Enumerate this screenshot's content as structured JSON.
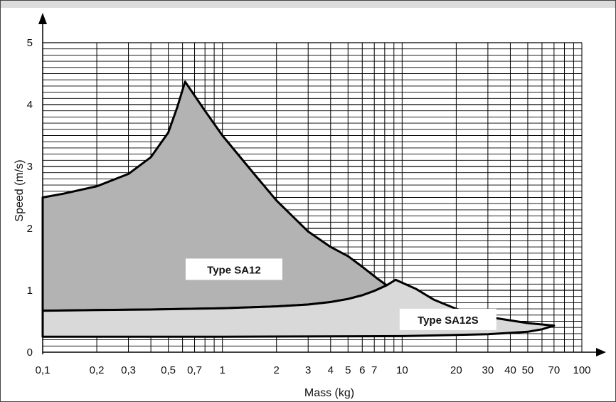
{
  "chart_data": {
    "type": "area",
    "title": "",
    "xlabel": "Mass (kg)",
    "ylabel": "Speed (m/s)",
    "xscale": "log",
    "xlim": [
      0.1,
      100
    ],
    "ylim": [
      0,
      5
    ],
    "grid": true,
    "x_tick_labels": [
      {
        "value": 0.1,
        "label": "0,1"
      },
      {
        "value": 0.2,
        "label": "0,2"
      },
      {
        "value": 0.3,
        "label": "0,3"
      },
      {
        "value": 0.5,
        "label": "0,5"
      },
      {
        "value": 0.7,
        "label": "0,7"
      },
      {
        "value": 1,
        "label": "1"
      },
      {
        "value": 2,
        "label": "2"
      },
      {
        "value": 3,
        "label": "3"
      },
      {
        "value": 4,
        "label": "4"
      },
      {
        "value": 5,
        "label": "5"
      },
      {
        "value": 6,
        "label": "6"
      },
      {
        "value": 7,
        "label": "7"
      },
      {
        "value": 10,
        "label": "10"
      },
      {
        "value": 20,
        "label": "20"
      },
      {
        "value": 30,
        "label": "30"
      },
      {
        "value": 40,
        "label": "40"
      },
      {
        "value": 50,
        "label": "50"
      },
      {
        "value": 70,
        "label": "70"
      },
      {
        "value": 100,
        "label": "100"
      }
    ],
    "y_tick_labels": [
      {
        "value": 0,
        "label": "0"
      },
      {
        "value": 1,
        "label": "1"
      },
      {
        "value": 2,
        "label": "2"
      },
      {
        "value": 3,
        "label": "3"
      },
      {
        "value": 4,
        "label": "4"
      },
      {
        "value": 5,
        "label": "5"
      }
    ],
    "series": [
      {
        "name": "Type SA12",
        "fill": "#b3b3b3",
        "boundary": [
          [
            0.1,
            0.67
          ],
          [
            0.2,
            0.68
          ],
          [
            0.4,
            0.69
          ],
          [
            1,
            0.71
          ],
          [
            2,
            0.74
          ],
          [
            3,
            0.77
          ],
          [
            4,
            0.81
          ],
          [
            5,
            0.86
          ],
          [
            6,
            0.92
          ],
          [
            7,
            0.99
          ],
          [
            8.2,
            1.08
          ],
          [
            7.2,
            1.2
          ],
          [
            6,
            1.38
          ],
          [
            5,
            1.55
          ],
          [
            4,
            1.7
          ],
          [
            3,
            1.95
          ],
          [
            2,
            2.45
          ],
          [
            1.5,
            2.88
          ],
          [
            1,
            3.5
          ],
          [
            0.8,
            3.9
          ],
          [
            0.62,
            4.37
          ],
          [
            0.56,
            3.95
          ],
          [
            0.5,
            3.55
          ],
          [
            0.4,
            3.15
          ],
          [
            0.3,
            2.88
          ],
          [
            0.2,
            2.68
          ],
          [
            0.13,
            2.56
          ],
          [
            0.1,
            2.5
          ]
        ]
      },
      {
        "name": "Type SA12S",
        "fill": "#d9d9d9",
        "boundary": [
          [
            0.1,
            0.25
          ],
          [
            1,
            0.25
          ],
          [
            10,
            0.26
          ],
          [
            30,
            0.29
          ],
          [
            50,
            0.33
          ],
          [
            60,
            0.37
          ],
          [
            70,
            0.43
          ],
          [
            50,
            0.47
          ],
          [
            30,
            0.57
          ],
          [
            20,
            0.7
          ],
          [
            15,
            0.85
          ],
          [
            12,
            1.02
          ],
          [
            9.2,
            1.17
          ],
          [
            8.2,
            1.08
          ],
          [
            7,
            0.99
          ],
          [
            6,
            0.92
          ],
          [
            5,
            0.86
          ],
          [
            4,
            0.81
          ],
          [
            3,
            0.77
          ],
          [
            2,
            0.74
          ],
          [
            1,
            0.71
          ],
          [
            0.4,
            0.69
          ],
          [
            0.2,
            0.68
          ],
          [
            0.1,
            0.67
          ]
        ]
      }
    ]
  }
}
